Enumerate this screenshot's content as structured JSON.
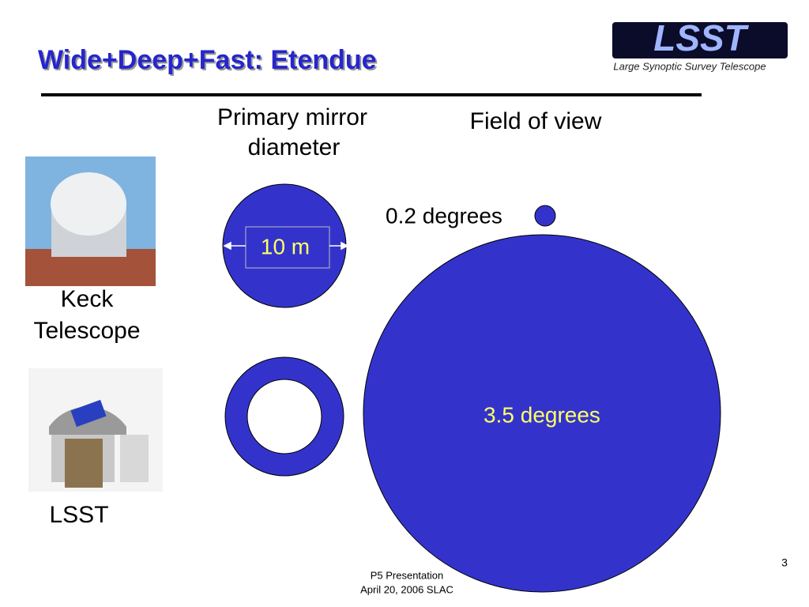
{
  "header": {
    "title": "Wide+Deep+Fast:  Etendue",
    "logo": {
      "mark": "LSST",
      "caption": "Large Synoptic Survey Telescope"
    }
  },
  "columns": {
    "mirror": [
      "Primary mirror",
      "diameter"
    ],
    "field": "Field of view"
  },
  "keck": {
    "label": [
      "Keck",
      "Telescope"
    ],
    "mirror": "10 m",
    "field": "0.2 degrees"
  },
  "lsst": {
    "label": "LSST",
    "field": "3.5 degrees"
  },
  "footer": {
    "page": "3",
    "lines": [
      "P5 Presentation",
      "April 20, 2006 SLAC"
    ]
  }
}
